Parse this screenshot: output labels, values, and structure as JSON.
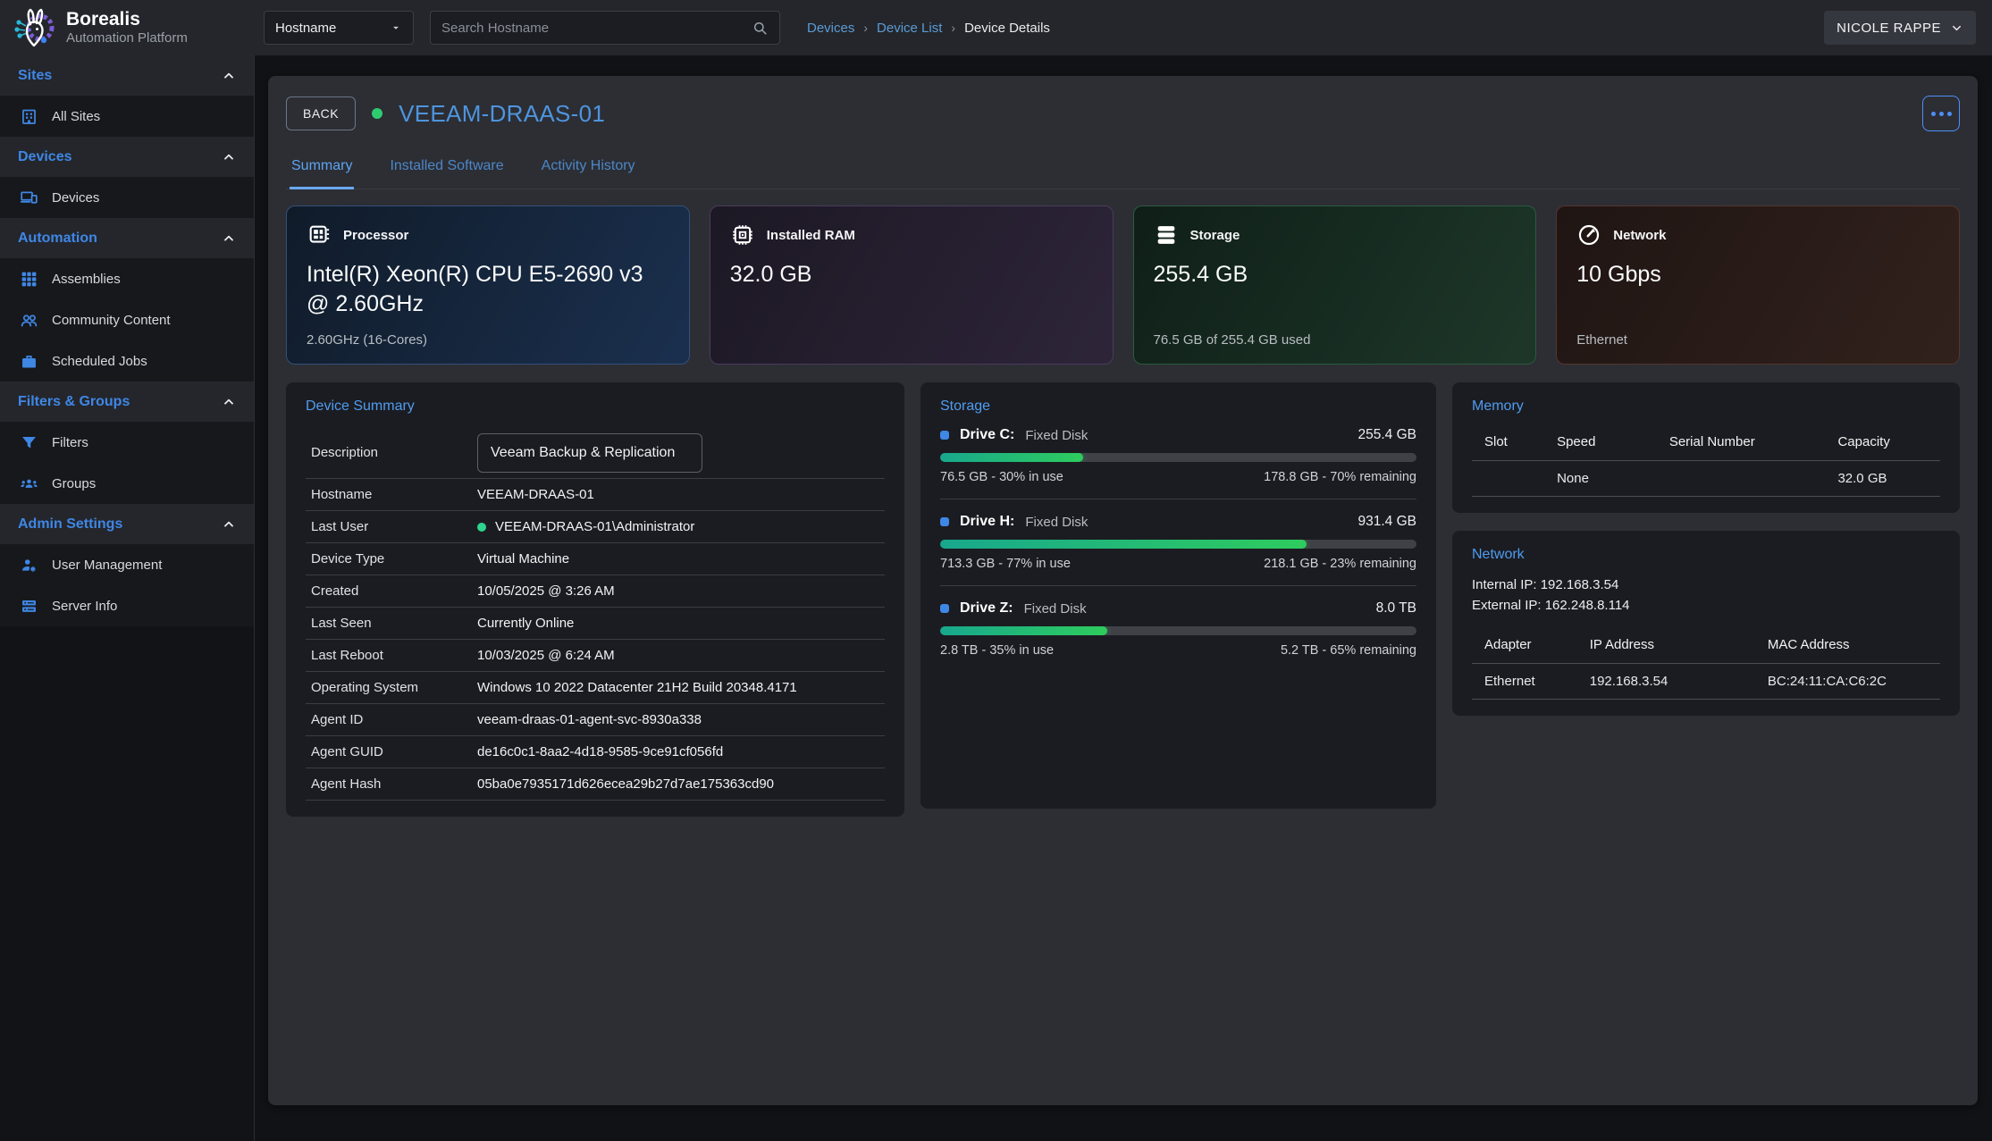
{
  "colors": {
    "accent_blue": "#3f87e5",
    "link_blue": "#5b9bd5",
    "device_title_blue": "#4e94dd",
    "online_green": "#2ecc71",
    "bar_green_start": "#18a88d",
    "bar_green_end": "#2ecc5e",
    "panel_bg": "#1b1c21",
    "container_bg": "#2c2e34",
    "topbar_bg": "#24262b",
    "page_bg": "#121316"
  },
  "topbar": {
    "brand": "Borealis",
    "brand_sub": "Automation Platform",
    "filter_selected": "Hostname",
    "search_placeholder": "Search Hostname",
    "breadcrumb": {
      "item1": "Devices",
      "item2": "Device List",
      "current": "Device Details",
      "sep": "›"
    },
    "user": "NICOLE RAPPE"
  },
  "sidebar": {
    "sections": [
      {
        "label": "Sites",
        "items": [
          {
            "label": "All Sites",
            "icon": "sites-icon"
          }
        ]
      },
      {
        "label": "Devices",
        "items": [
          {
            "label": "Devices",
            "icon": "devices-icon"
          }
        ]
      },
      {
        "label": "Automation",
        "items": [
          {
            "label": "Assemblies",
            "icon": "assemblies-icon"
          },
          {
            "label": "Community Content",
            "icon": "community-icon"
          },
          {
            "label": "Scheduled Jobs",
            "icon": "briefcase-icon"
          }
        ]
      },
      {
        "label": "Filters & Groups",
        "items": [
          {
            "label": "Filters",
            "icon": "filter-icon"
          },
          {
            "label": "Groups",
            "icon": "groups-icon"
          }
        ]
      },
      {
        "label": "Admin Settings",
        "items": [
          {
            "label": "User Management",
            "icon": "user-gear-icon"
          },
          {
            "label": "Server Info",
            "icon": "server-icon"
          }
        ]
      }
    ]
  },
  "header": {
    "back_label": "BACK",
    "device_name": "VEEAM-DRAAS-01",
    "status": "online"
  },
  "tabs": [
    {
      "label": "Summary",
      "active": true
    },
    {
      "label": "Installed Software",
      "active": false
    },
    {
      "label": "Activity History",
      "active": false
    }
  ],
  "stat_cards": [
    {
      "label": "Processor",
      "value": "Intel(R) Xeon(R) CPU E5-2690 v3 @ 2.60GHz",
      "sub": "2.60GHz (16-Cores)",
      "icon": "cpu-icon"
    },
    {
      "label": "Installed RAM",
      "value": "32.0 GB",
      "sub": "",
      "icon": "ram-icon"
    },
    {
      "label": "Storage",
      "value": "255.4 GB",
      "sub": "76.5 GB of 255.4 GB used",
      "icon": "storage-icon"
    },
    {
      "label": "Network",
      "value": "10 Gbps",
      "sub": "Ethernet",
      "icon": "gauge-icon"
    }
  ],
  "device_summary": {
    "title": "Device Summary",
    "description_label": "Description",
    "description_value": "Veeam Backup & Replication",
    "rows": [
      {
        "label": "Hostname",
        "value": "VEEAM-DRAAS-01"
      },
      {
        "label": "Last User",
        "value": "VEEAM-DRAAS-01\\Administrator",
        "online": true
      },
      {
        "label": "Device Type",
        "value": "Virtual Machine"
      },
      {
        "label": "Created",
        "value": "10/05/2025 @ 3:26 AM"
      },
      {
        "label": "Last Seen",
        "value": "Currently Online"
      },
      {
        "label": "Last Reboot",
        "value": "10/03/2025 @ 6:24 AM"
      },
      {
        "label": "Operating System",
        "value": "Windows 10 2022 Datacenter 21H2 Build 20348.4171"
      },
      {
        "label": "Agent ID",
        "value": "veeam-draas-01-agent-svc-8930a338"
      },
      {
        "label": "Agent GUID",
        "value": "de16c0c1-8aa2-4d18-9585-9ce91cf056fd"
      },
      {
        "label": "Agent Hash",
        "value": "05ba0e7935171d626ecea29b27d7ae175363cd90"
      }
    ]
  },
  "storage_panel": {
    "title": "Storage",
    "drives": [
      {
        "name": "Drive C:",
        "type": "Fixed Disk",
        "size": "255.4 GB",
        "pct": 30,
        "used": "76.5 GB - 30% in use",
        "free": "178.8 GB - 70% remaining"
      },
      {
        "name": "Drive H:",
        "type": "Fixed Disk",
        "size": "931.4 GB",
        "pct": 77,
        "used": "713.3 GB - 77% in use",
        "free": "218.1 GB - 23% remaining"
      },
      {
        "name": "Drive Z:",
        "type": "Fixed Disk",
        "size": "8.0 TB",
        "pct": 35,
        "used": "2.8 TB - 35% in use",
        "free": "5.2 TB - 65% remaining"
      }
    ]
  },
  "memory_panel": {
    "title": "Memory",
    "headers": [
      "Slot",
      "Speed",
      "Serial Number",
      "Capacity"
    ],
    "rows": [
      [
        "",
        "None",
        "",
        "32.0 GB"
      ]
    ]
  },
  "network_panel": {
    "title": "Network",
    "internal_ip": "Internal IP: 192.168.3.54",
    "external_ip": "External IP: 162.248.8.114",
    "headers": [
      "Adapter",
      "IP Address",
      "MAC Address"
    ],
    "rows": [
      [
        "Ethernet",
        "192.168.3.54",
        "BC:24:11:CA:C6:2C"
      ]
    ]
  }
}
